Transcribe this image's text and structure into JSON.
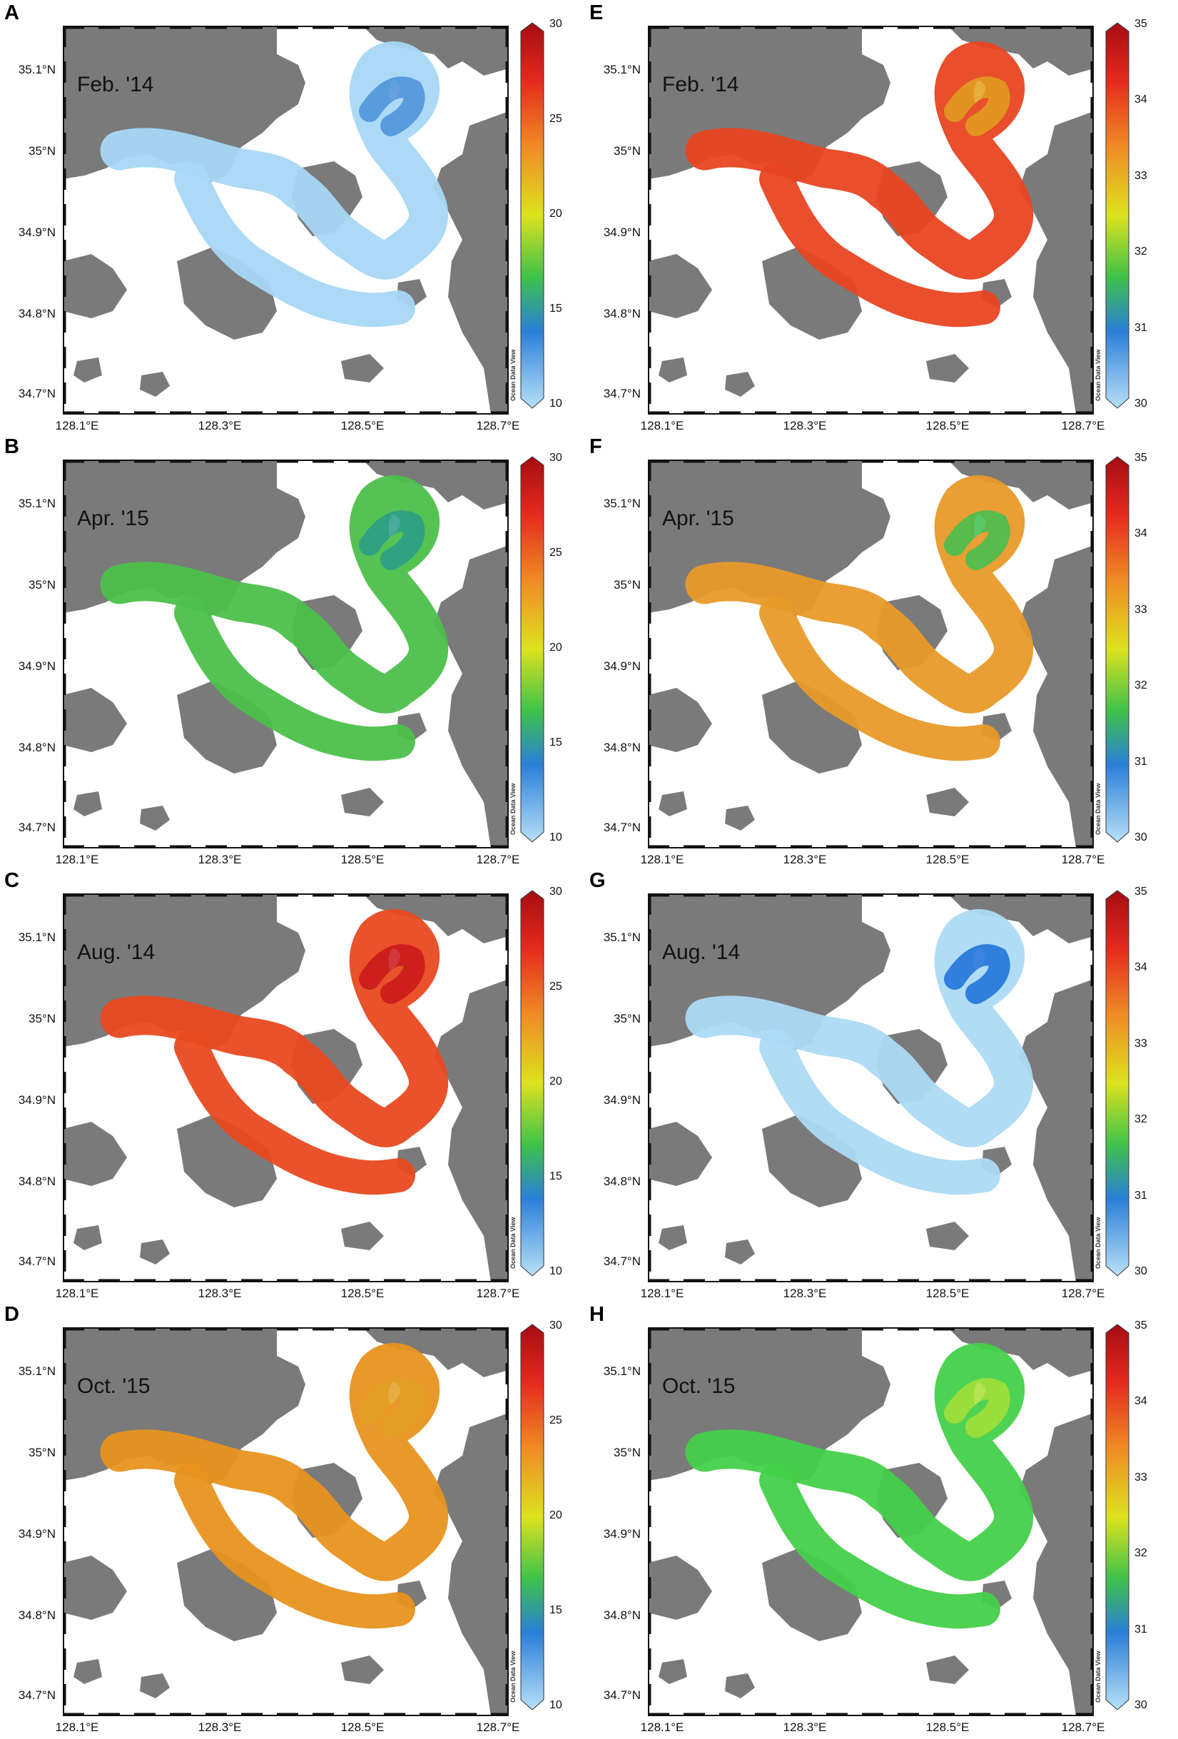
{
  "colors": {
    "land": "#7a7a7a",
    "background": "#ffffff",
    "frame": "#111111"
  },
  "watermark": "Ocean Data View",
  "axes": {
    "lat_ticks": [
      "35.1°N",
      "35°N",
      "34.9°N",
      "34.8°N",
      "34.7°N"
    ],
    "lon_ticks": [
      "128.1°E",
      "128.3°E",
      "128.5°E",
      "128.7°E"
    ]
  },
  "colorbars": {
    "temperature": {
      "ticks": [
        "30",
        "25",
        "20",
        "15",
        "10"
      ],
      "min": 10,
      "max": 30
    },
    "salinity": {
      "ticks": [
        "35",
        "34",
        "33",
        "32",
        "31",
        "30"
      ],
      "min": 30,
      "max": 35
    }
  },
  "panels": [
    {
      "letter": "A",
      "season": "Feb. '14",
      "variable": "temperature",
      "color": "#a8d8f5",
      "accent": "#4a90d9",
      "accent_label": "cooler south"
    },
    {
      "letter": "B",
      "season": "Apr. '15",
      "variable": "temperature",
      "color": "#4cc04a",
      "accent": "#2a9c8a",
      "accent_label": "teal north"
    },
    {
      "letter": "C",
      "season": "Aug. '14",
      "variable": "temperature",
      "color": "#e8491f",
      "accent": "#c8161a",
      "accent_label": "dark red west"
    },
    {
      "letter": "D",
      "season": "Oct. '15",
      "variable": "temperature",
      "color": "#e8921f",
      "accent": "#e0a024",
      "accent_label": "orange"
    },
    {
      "letter": "E",
      "season": "Feb. '14",
      "variable": "salinity",
      "color": "#e84422",
      "accent": "#e0a020",
      "accent_label": "orange north"
    },
    {
      "letter": "F",
      "season": "Apr. '15",
      "variable": "salinity",
      "color": "#e89a28",
      "accent": "#3ec050",
      "accent_label": "green north"
    },
    {
      "letter": "G",
      "season": "Aug. '14",
      "variable": "salinity",
      "color": "#acdaf5",
      "accent": "#1a6fd8",
      "accent_label": "blue west"
    },
    {
      "letter": "H",
      "season": "Oct. '15",
      "variable": "salinity",
      "color": "#44d04a",
      "accent": "#a8e038",
      "accent_label": "yellow-green south"
    }
  ]
}
